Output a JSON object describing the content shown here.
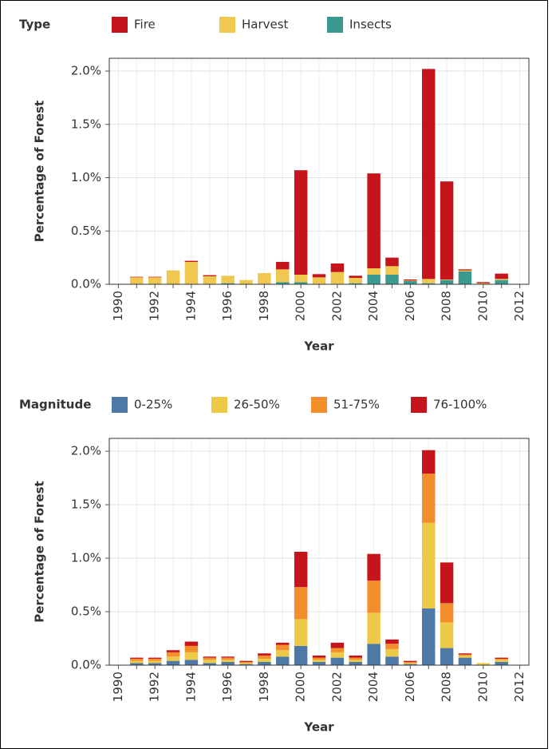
{
  "chart_data": [
    {
      "type": "bar",
      "stacked": true,
      "legend_title": "Type",
      "x_label": "Year",
      "y_label": "Percentage of Forest",
      "categories": [
        "1990",
        null,
        "1992",
        null,
        "1994",
        null,
        "1996",
        null,
        "1998",
        null,
        "2000",
        null,
        "2002",
        null,
        "2004",
        null,
        "2006",
        null,
        "2008",
        null,
        "2010",
        null,
        "2012"
      ],
      "series": [
        {
          "name": "Insects",
          "color": "#3a9a8f",
          "values": [
            0,
            0.005,
            0.005,
            0,
            0,
            0.005,
            0.01,
            0,
            0.005,
            0.02,
            0.02,
            0.005,
            0.005,
            0.01,
            0.09,
            0.09,
            0.03,
            0.01,
            0.04,
            0.12,
            0,
            0.04,
            0
          ]
        },
        {
          "name": "Harvest",
          "color": "#f0c850",
          "values": [
            0,
            0.06,
            0.06,
            0.13,
            0.21,
            0.07,
            0.07,
            0.04,
            0.1,
            0.12,
            0.07,
            0.06,
            0.11,
            0.05,
            0.06,
            0.08,
            0.005,
            0.04,
            0.005,
            0.01,
            0.01,
            0.01,
            0
          ]
        },
        {
          "name": "Fire",
          "color": "#c5141b",
          "values": [
            0,
            0.005,
            0.005,
            0,
            0.01,
            0.01,
            0,
            0,
            0,
            0.07,
            0.98,
            0.03,
            0.08,
            0.02,
            0.89,
            0.08,
            0.01,
            1.97,
            0.92,
            0.01,
            0.01,
            0.05,
            0
          ]
        }
      ],
      "legend_order": [
        2,
        1,
        0
      ],
      "ylim": [
        0,
        2.12
      ],
      "yticks": [
        {
          "value": 0,
          "label": "0.0%"
        },
        {
          "value": 0.5,
          "label": "0.5%"
        },
        {
          "value": 1,
          "label": "1.0%"
        },
        {
          "value": 1.5,
          "label": "1.5%"
        },
        {
          "value": 2,
          "label": "2.0%"
        }
      ],
      "grid": true
    },
    {
      "type": "bar",
      "stacked": true,
      "legend_title": "Magnitude",
      "x_label": "Year",
      "y_label": "Percentage of Forest",
      "categories": [
        "1990",
        null,
        "1992",
        null,
        "1994",
        null,
        "1996",
        null,
        "1998",
        null,
        "2000",
        null,
        "2002",
        null,
        "2004",
        null,
        "2006",
        null,
        "2008",
        null,
        "2010",
        null,
        "2012"
      ],
      "series": [
        {
          "name": "0-25%",
          "color": "#4e79a7",
          "values": [
            0,
            0.02,
            0.02,
            0.04,
            0.05,
            0.02,
            0.03,
            0.01,
            0.03,
            0.08,
            0.18,
            0.03,
            0.07,
            0.03,
            0.2,
            0.08,
            0.01,
            0.53,
            0.16,
            0.07,
            0,
            0.03,
            0
          ]
        },
        {
          "name": "26-50%",
          "color": "#edc948",
          "values": [
            0,
            0.02,
            0.02,
            0.04,
            0.07,
            0.03,
            0.02,
            0.01,
            0.03,
            0.06,
            0.25,
            0.02,
            0.05,
            0.02,
            0.29,
            0.07,
            0.01,
            0.8,
            0.24,
            0.02,
            0.02,
            0.02,
            0
          ]
        },
        {
          "name": "51-75%",
          "color": "#f28e2b",
          "values": [
            0,
            0.02,
            0.02,
            0.04,
            0.06,
            0.02,
            0.02,
            0.01,
            0.03,
            0.05,
            0.3,
            0.02,
            0.04,
            0.02,
            0.3,
            0.05,
            0.01,
            0.46,
            0.18,
            0.01,
            0,
            0.01,
            0
          ]
        },
        {
          "name": "76-100%",
          "color": "#c5141b",
          "values": [
            0,
            0.01,
            0.01,
            0.02,
            0.04,
            0.01,
            0.01,
            0.01,
            0.02,
            0.02,
            0.33,
            0.02,
            0.05,
            0.02,
            0.25,
            0.04,
            0.01,
            0.22,
            0.38,
            0.01,
            0,
            0.01,
            0
          ]
        }
      ],
      "legend_order": [
        0,
        1,
        2,
        3
      ],
      "ylim": [
        0,
        2.12
      ],
      "yticks": [
        {
          "value": 0,
          "label": "0.0%"
        },
        {
          "value": 0.5,
          "label": "0.5%"
        },
        {
          "value": 1,
          "label": "1.0%"
        },
        {
          "value": 1.5,
          "label": "1.5%"
        },
        {
          "value": 2,
          "label": "2.0%"
        }
      ],
      "grid": true
    }
  ]
}
